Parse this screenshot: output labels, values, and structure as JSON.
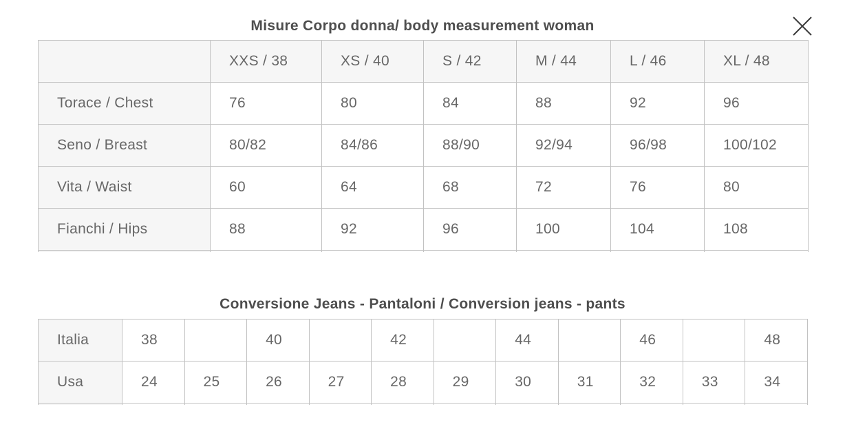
{
  "modal": {
    "icons": {
      "close": "x-mark"
    }
  },
  "body_table": {
    "title": "Misure Corpo donna/ body measurement woman",
    "columns": [
      "",
      "XXS / 38",
      "XS / 40",
      "S / 42",
      "M / 44",
      "L / 46",
      "XL / 48"
    ],
    "rows": [
      {
        "label": "Torace / Chest",
        "values": [
          "76",
          "80",
          "84",
          "88",
          "92",
          "96"
        ]
      },
      {
        "label": "Seno / Breast",
        "values": [
          "80/82",
          "84/86",
          "88/90",
          "92/94",
          "96/98",
          "100/102"
        ]
      },
      {
        "label": "Vita / Waist",
        "values": [
          "60",
          "64",
          "68",
          "72",
          "76",
          "80"
        ]
      },
      {
        "label": "Fianchi / Hips",
        "values": [
          "88",
          "92",
          "96",
          "100",
          "104",
          "108"
        ]
      }
    ]
  },
  "jeans_table": {
    "title": "Conversione Jeans - Pantaloni / Conversion jeans - pants",
    "rows": [
      {
        "label": "Italia",
        "values": [
          "38",
          "",
          "40",
          "",
          "42",
          "",
          "44",
          "",
          "46",
          "",
          "48"
        ]
      },
      {
        "label": "Usa",
        "values": [
          "24",
          "25",
          "26",
          "27",
          "28",
          "29",
          "30",
          "31",
          "32",
          "33",
          "34"
        ]
      }
    ]
  },
  "colors": {
    "header_bg": "#f6f6f6",
    "border": "#c2c2c2",
    "cell_text": "#676767",
    "title_text": "#4e4e4e",
    "close_icon": "#3d3d3d"
  }
}
